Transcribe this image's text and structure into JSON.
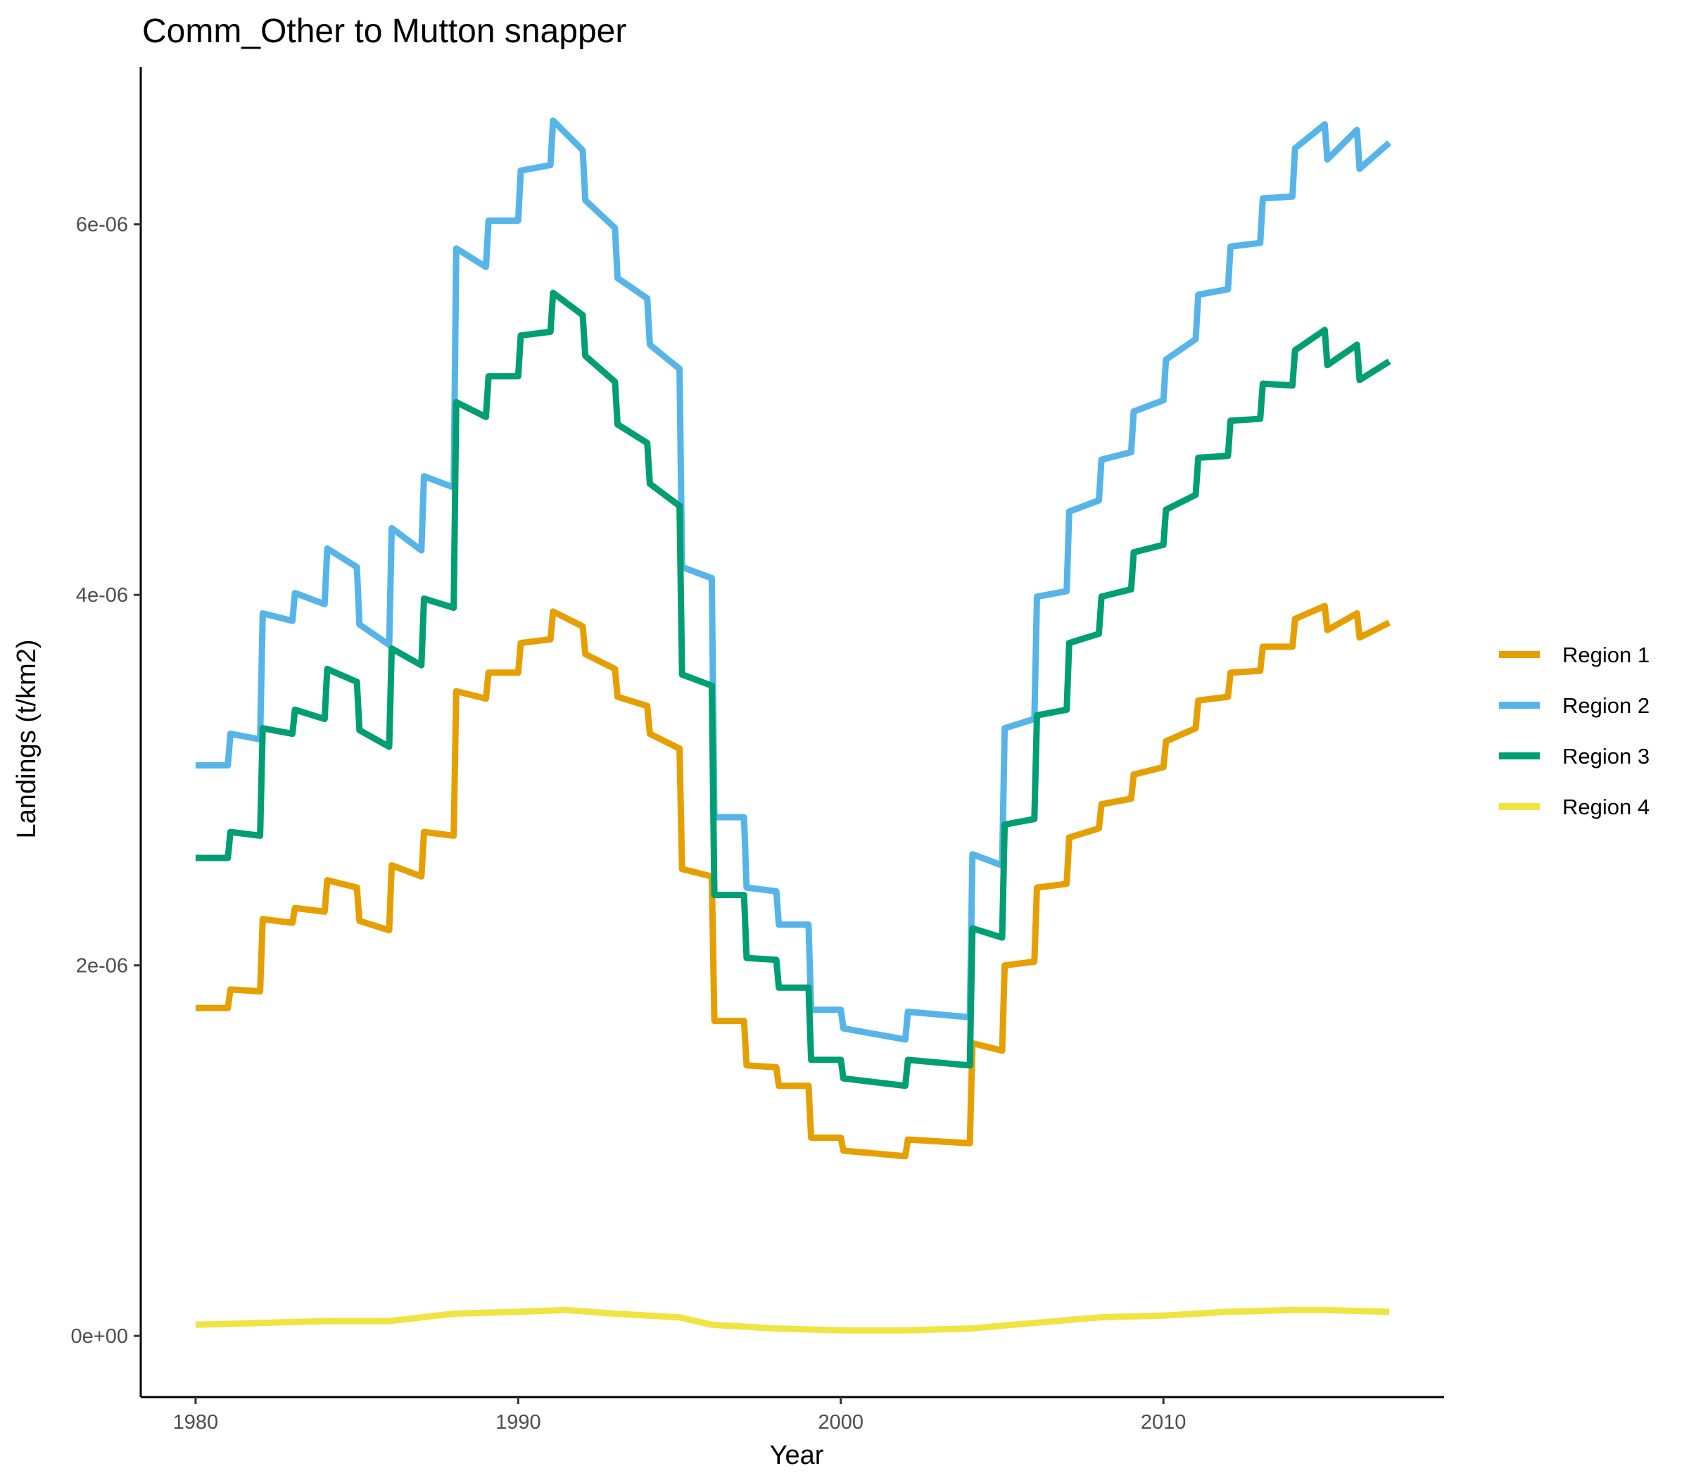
{
  "chart_data": {
    "type": "line",
    "title": "Comm_Other to Mutton snapper",
    "xlabel": "Year",
    "ylabel": "Landings (t/km2)",
    "xlim": [
      1978.3,
      2018.7
    ],
    "ylim": [
      -3.3e-07,
      6.85e-06
    ],
    "x_ticks": [
      1980,
      1990,
      2000,
      2010
    ],
    "x_tick_labels": [
      "1980",
      "1990",
      "2000",
      "2010"
    ],
    "y_ticks": [
      0,
      2e-06,
      4e-06,
      6e-06
    ],
    "y_tick_labels": [
      "0e+00",
      "2e-06",
      "4e-06",
      "6e-06"
    ],
    "grid": false,
    "legend_position": "right",
    "series": [
      {
        "name": "Region 1",
        "color": "#E69F00",
        "x": [
          1980,
          1981,
          1981.08,
          1982,
          1982.08,
          1983,
          1983.08,
          1984,
          1984.08,
          1985,
          1985.08,
          1986,
          1986.08,
          1987,
          1987.08,
          1988,
          1988.08,
          1989,
          1989.08,
          1990,
          1990.08,
          1991,
          1991.08,
          1992,
          1992.08,
          1993,
          1993.08,
          1994,
          1994.08,
          1995,
          1995.08,
          1996,
          1996.08,
          1997,
          1997.08,
          1998,
          1998.08,
          1999,
          1999.08,
          2000,
          2000.08,
          2002,
          2002.08,
          2004,
          2004.08,
          2005,
          2005.08,
          2006,
          2006.08,
          2007,
          2007.08,
          2008,
          2008.08,
          2009,
          2009.08,
          2010,
          2010.08,
          2011,
          2011.08,
          2012,
          2012.08,
          2013,
          2013.08,
          2014,
          2014.08,
          2015,
          2015.08,
          2016,
          2016.08,
          2017
        ],
        "y": [
          1.77e-06,
          1.77e-06,
          1.87e-06,
          1.86e-06,
          2.25e-06,
          2.23e-06,
          2.31e-06,
          2.29e-06,
          2.46e-06,
          2.42e-06,
          2.24e-06,
          2.19e-06,
          2.54e-06,
          2.48e-06,
          2.72e-06,
          2.7e-06,
          3.48e-06,
          3.44e-06,
          3.58e-06,
          3.58e-06,
          3.74e-06,
          3.76e-06,
          3.91e-06,
          3.83e-06,
          3.68e-06,
          3.6e-06,
          3.45e-06,
          3.4e-06,
          3.25e-06,
          3.17e-06,
          2.52e-06,
          2.48e-06,
          1.7e-06,
          1.7e-06,
          1.46e-06,
          1.45e-06,
          1.35e-06,
          1.35e-06,
          1.07e-06,
          1.07e-06,
          1e-06,
          9.7e-07,
          1.06e-06,
          1.04e-06,
          1.58e-06,
          1.54e-06,
          2e-06,
          2.02e-06,
          2.42e-06,
          2.44e-06,
          2.69e-06,
          2.74e-06,
          2.87e-06,
          2.9e-06,
          3.03e-06,
          3.07e-06,
          3.21e-06,
          3.28e-06,
          3.43e-06,
          3.45e-06,
          3.58e-06,
          3.59e-06,
          3.72e-06,
          3.72e-06,
          3.87e-06,
          3.94e-06,
          3.81e-06,
          3.9e-06,
          3.77e-06,
          3.85e-06
        ]
      },
      {
        "name": "Region 2",
        "color": "#56B4E9",
        "x": [
          1980,
          1981,
          1981.08,
          1982,
          1982.08,
          1983,
          1983.08,
          1984,
          1984.08,
          1985,
          1985.08,
          1986,
          1986.08,
          1987,
          1987.08,
          1988,
          1988.08,
          1989,
          1989.08,
          1990,
          1990.08,
          1991,
          1991.08,
          1992,
          1992.08,
          1993,
          1993.08,
          1994,
          1994.08,
          1995,
          1995.08,
          1996,
          1996.08,
          1997,
          1997.08,
          1998,
          1998.08,
          1999,
          1999.08,
          2000,
          2000.08,
          2002,
          2002.08,
          2004,
          2004.08,
          2005,
          2005.08,
          2006,
          2006.08,
          2007,
          2007.08,
          2008,
          2008.08,
          2009,
          2009.08,
          2010,
          2010.08,
          2011,
          2011.08,
          2012,
          2012.08,
          2013,
          2013.08,
          2014,
          2014.08,
          2015,
          2015.08,
          2016,
          2016.08,
          2017
        ],
        "y": [
          3.08e-06,
          3.08e-06,
          3.25e-06,
          3.22e-06,
          3.9e-06,
          3.86e-06,
          4.01e-06,
          3.95e-06,
          4.25e-06,
          4.15e-06,
          3.84e-06,
          3.73e-06,
          4.36e-06,
          4.24e-06,
          4.64e-06,
          4.58e-06,
          5.87e-06,
          5.77e-06,
          6.02e-06,
          6.02e-06,
          6.29e-06,
          6.32e-06,
          6.56e-06,
          6.4e-06,
          6.13e-06,
          5.98e-06,
          5.71e-06,
          5.6e-06,
          5.35e-06,
          5.22e-06,
          4.15e-06,
          4.09e-06,
          2.8e-06,
          2.8e-06,
          2.42e-06,
          2.4e-06,
          2.22e-06,
          2.22e-06,
          1.76e-06,
          1.76e-06,
          1.66e-06,
          1.6e-06,
          1.75e-06,
          1.72e-06,
          2.6e-06,
          2.54e-06,
          3.28e-06,
          3.33e-06,
          3.99e-06,
          4.02e-06,
          4.45e-06,
          4.51e-06,
          4.73e-06,
          4.77e-06,
          4.99e-06,
          5.05e-06,
          5.27e-06,
          5.38e-06,
          5.62e-06,
          5.65e-06,
          5.88e-06,
          5.9e-06,
          6.14e-06,
          6.15e-06,
          6.41e-06,
          6.54e-06,
          6.35e-06,
          6.51e-06,
          6.3e-06,
          6.44e-06
        ]
      },
      {
        "name": "Region 3",
        "color": "#009E73",
        "x": [
          1980,
          1981,
          1981.08,
          1982,
          1982.08,
          1983,
          1983.08,
          1984,
          1984.08,
          1985,
          1985.08,
          1986,
          1986.08,
          1987,
          1987.08,
          1988,
          1988.08,
          1989,
          1989.08,
          1990,
          1990.08,
          1991,
          1991.08,
          1992,
          1992.08,
          1993,
          1993.08,
          1994,
          1994.08,
          1995,
          1995.08,
          1996,
          1996.08,
          1997,
          1997.08,
          1998,
          1998.08,
          1999,
          1999.08,
          2000,
          2000.08,
          2002,
          2002.08,
          2004,
          2004.08,
          2005,
          2005.08,
          2006,
          2006.08,
          2007,
          2007.08,
          2008,
          2008.08,
          2009,
          2009.08,
          2010,
          2010.08,
          2011,
          2011.08,
          2012,
          2012.08,
          2013,
          2013.08,
          2014,
          2014.08,
          2015,
          2015.08,
          2016,
          2016.08,
          2017
        ],
        "y": [
          2.58e-06,
          2.58e-06,
          2.72e-06,
          2.7e-06,
          3.28e-06,
          3.25e-06,
          3.38e-06,
          3.33e-06,
          3.6e-06,
          3.53e-06,
          3.27e-06,
          3.18e-06,
          3.71e-06,
          3.62e-06,
          3.98e-06,
          3.93e-06,
          5.04e-06,
          4.96e-06,
          5.18e-06,
          5.18e-06,
          5.4e-06,
          5.42e-06,
          5.63e-06,
          5.51e-06,
          5.29e-06,
          5.15e-06,
          4.92e-06,
          4.82e-06,
          4.6e-06,
          4.48e-06,
          3.57e-06,
          3.51e-06,
          2.38e-06,
          2.38e-06,
          2.04e-06,
          2.03e-06,
          1.88e-06,
          1.88e-06,
          1.49e-06,
          1.49e-06,
          1.39e-06,
          1.35e-06,
          1.49e-06,
          1.46e-06,
          2.2e-06,
          2.15e-06,
          2.76e-06,
          2.79e-06,
          3.35e-06,
          3.38e-06,
          3.74e-06,
          3.79e-06,
          3.99e-06,
          4.03e-06,
          4.23e-06,
          4.27e-06,
          4.46e-06,
          4.54e-06,
          4.74e-06,
          4.75e-06,
          4.94e-06,
          4.95e-06,
          5.14e-06,
          5.13e-06,
          5.32e-06,
          5.43e-06,
          5.24e-06,
          5.35e-06,
          5.16e-06,
          5.26e-06
        ]
      },
      {
        "name": "Region 4",
        "color": "#F0E442",
        "x": [
          1980,
          1982,
          1984,
          1986,
          1988,
          1990,
          1991.5,
          1993,
          1995,
          1996,
          1998,
          2000,
          2002,
          2004,
          2006,
          2008,
          2010,
          2012,
          2014,
          2015,
          2017
        ],
        "y": [
          6e-08,
          7e-08,
          8e-08,
          8e-08,
          1.2e-07,
          1.3e-07,
          1.4e-07,
          1.2e-07,
          1e-07,
          6e-08,
          4e-08,
          3e-08,
          3e-08,
          4e-08,
          7e-08,
          1e-07,
          1.1e-07,
          1.3e-07,
          1.4e-07,
          1.4e-07,
          1.3e-07
        ]
      }
    ]
  }
}
